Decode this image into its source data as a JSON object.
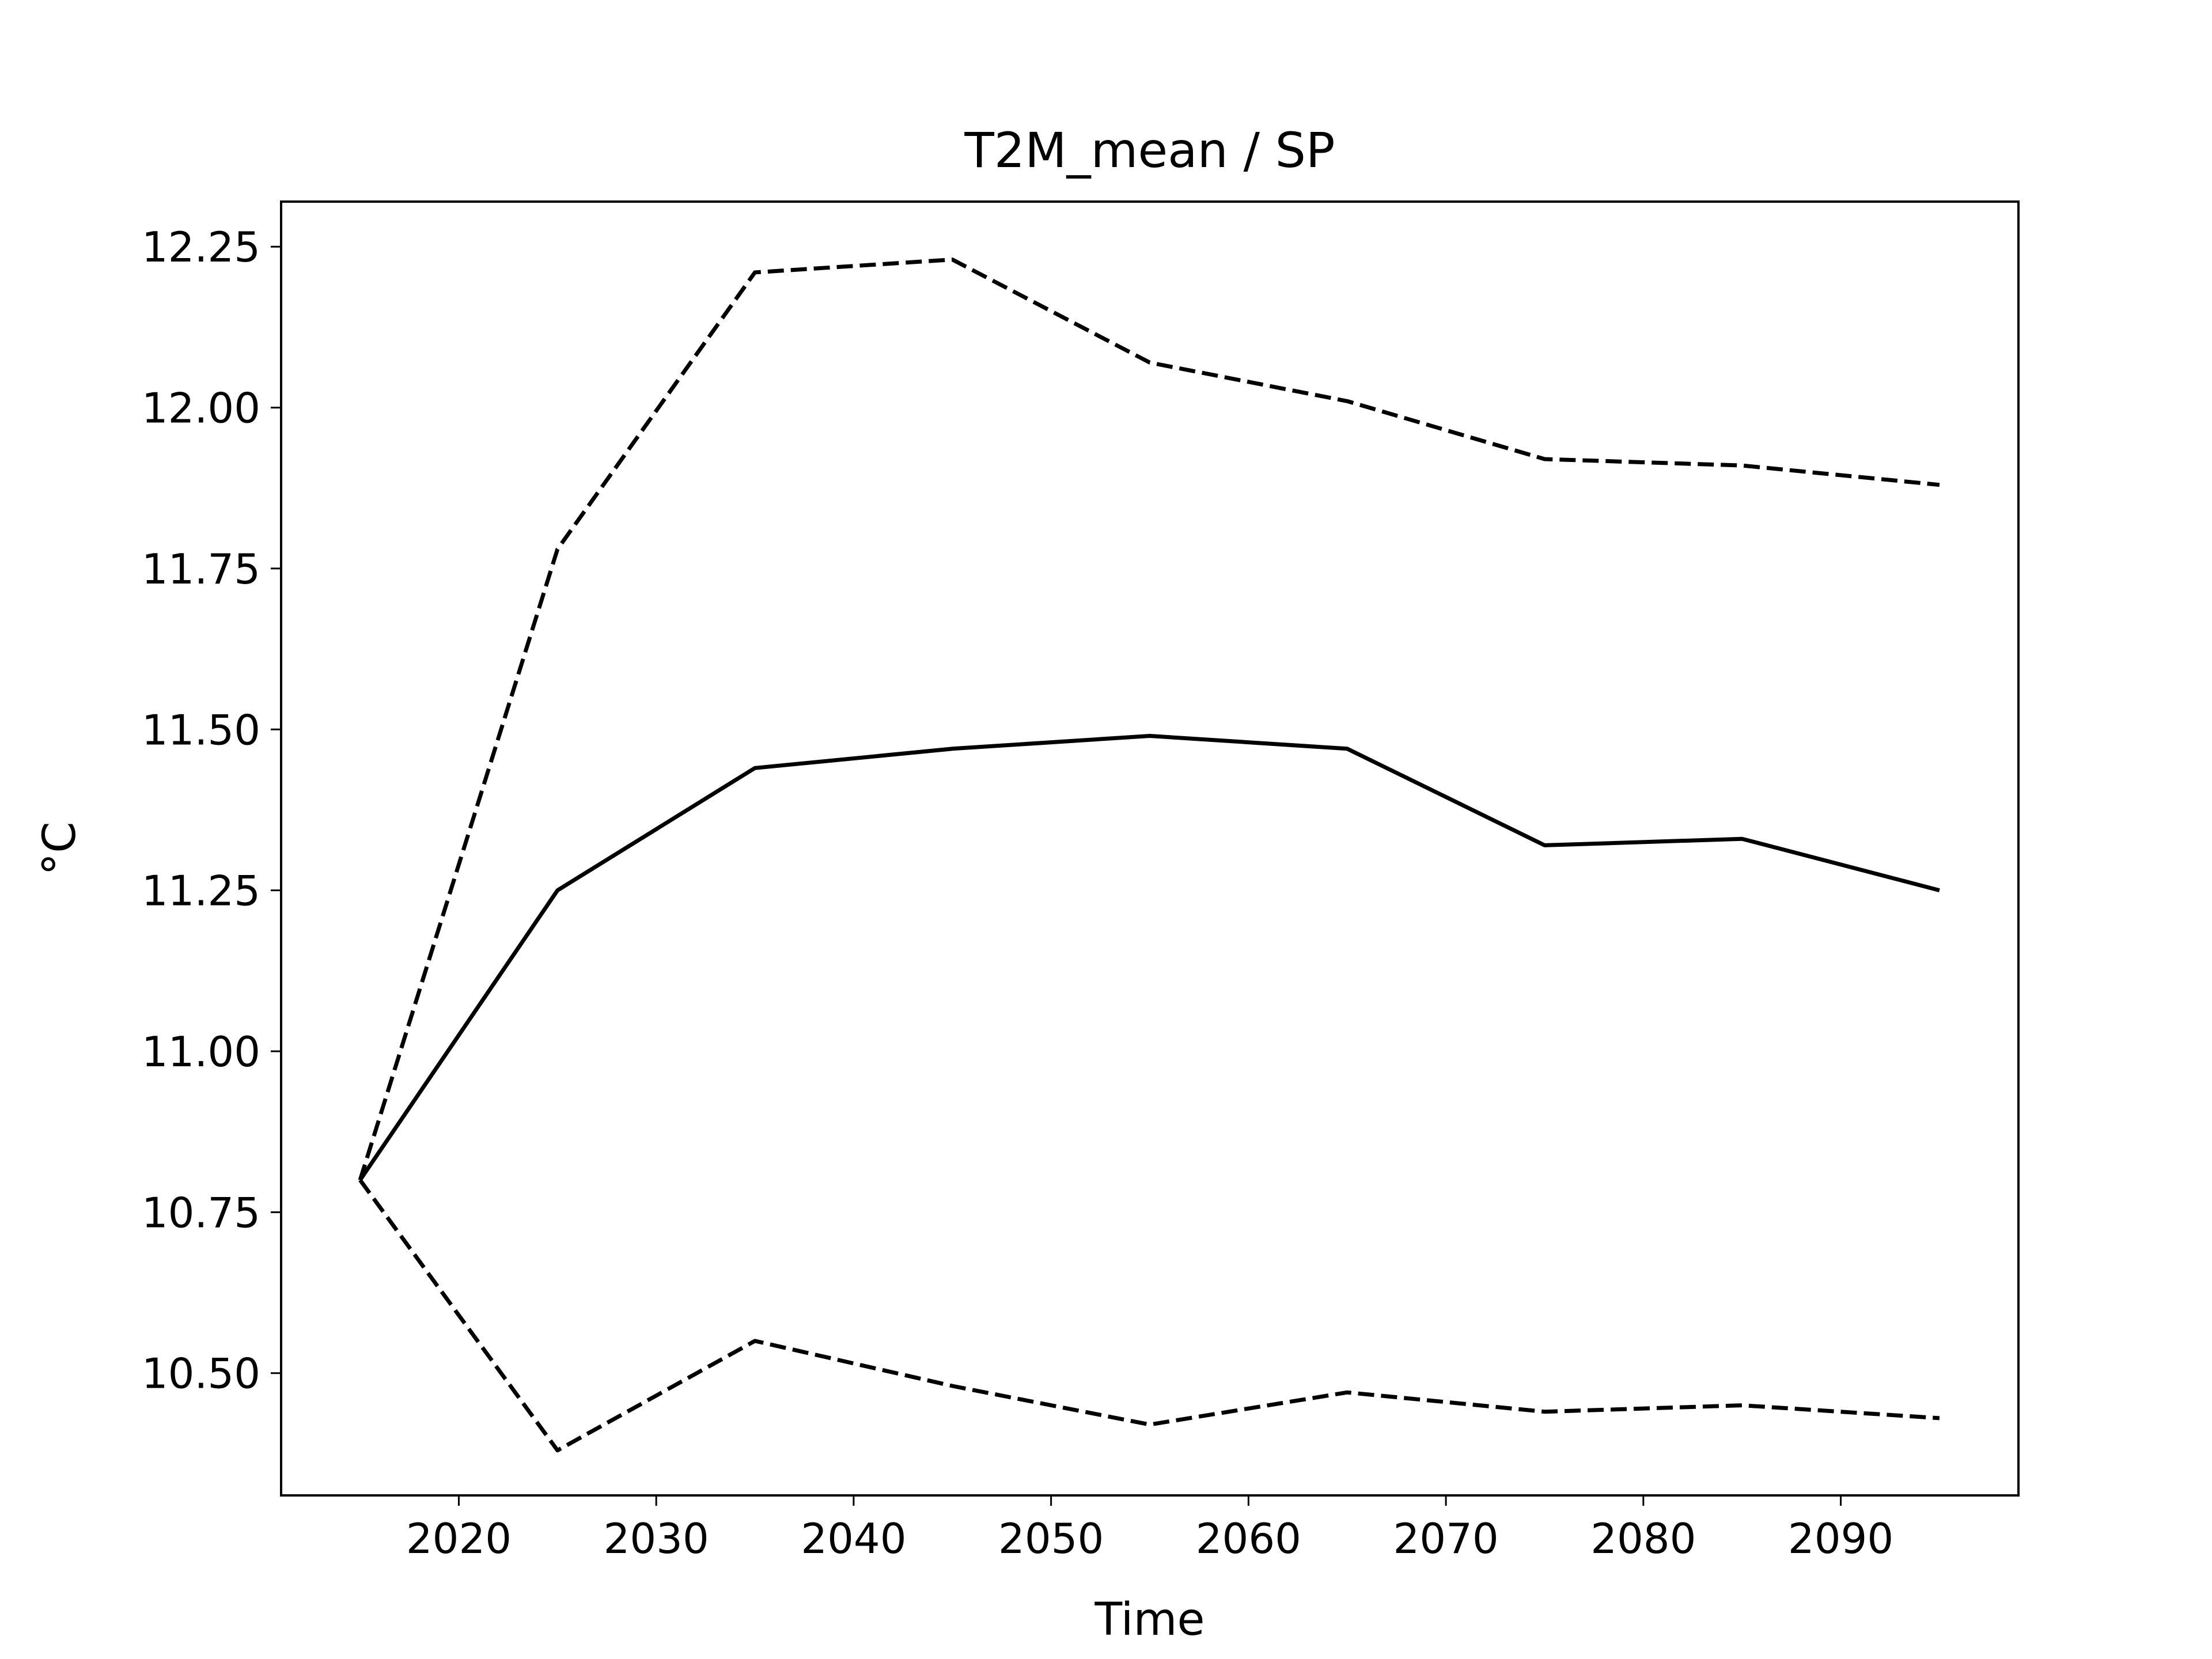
{
  "chart_data": {
    "type": "line",
    "title": "T2M_mean / SP",
    "xlabel": "Time",
    "ylabel": "°C",
    "xlim": [
      2011.0,
      2099.0
    ],
    "ylim": [
      10.31,
      12.32
    ],
    "xticks": [
      2020,
      2030,
      2040,
      2050,
      2060,
      2070,
      2080,
      2090
    ],
    "xtick_labels": [
      "2020",
      "2030",
      "2040",
      "2050",
      "2060",
      "2070",
      "2080",
      "2090"
    ],
    "yticks": [
      10.5,
      10.75,
      11.0,
      11.25,
      11.5,
      11.75,
      12.0,
      12.25
    ],
    "ytick_labels": [
      "10.50",
      "10.75",
      "11.00",
      "11.25",
      "11.50",
      "11.75",
      "12.00",
      "12.25"
    ],
    "grid": false,
    "x": [
      2015,
      2025,
      2035,
      2045,
      2055,
      2065,
      2075,
      2085,
      2095
    ],
    "series": [
      {
        "style": "dashed",
        "color": "#000000",
        "values": [
          10.8,
          11.78,
          12.21,
          12.23,
          12.07,
          12.01,
          11.92,
          11.91,
          11.88
        ]
      },
      {
        "style": "solid",
        "color": "#000000",
        "values": [
          10.8,
          11.25,
          11.44,
          11.47,
          11.49,
          11.47,
          11.32,
          11.33,
          11.25
        ]
      },
      {
        "style": "dashed",
        "color": "#000000",
        "values": [
          10.8,
          10.38,
          10.55,
          10.48,
          10.42,
          10.47,
          10.44,
          10.45,
          10.43
        ]
      }
    ]
  }
}
